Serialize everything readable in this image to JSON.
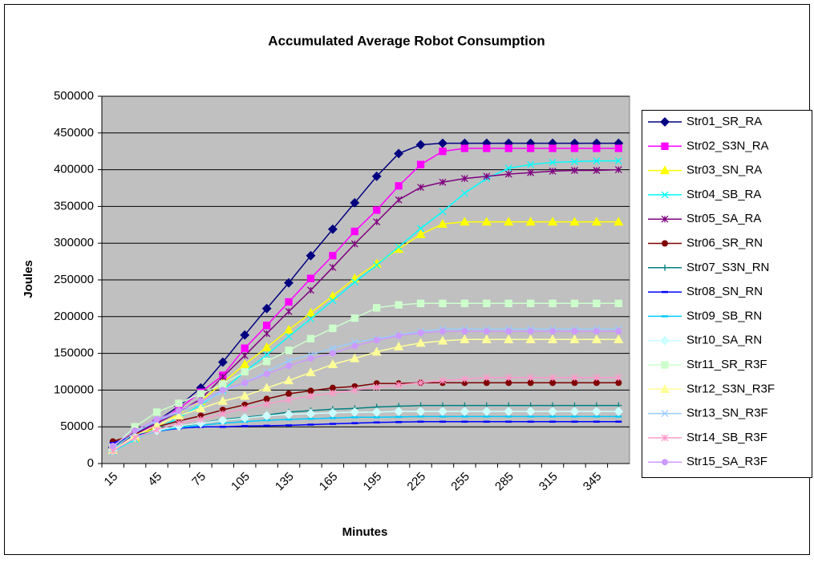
{
  "chart_data": {
    "type": "line",
    "title": "Accumulated Average Robot Consumption",
    "x_label": "Minutes",
    "y_label": "Joules",
    "categories": [
      15,
      null,
      45,
      null,
      75,
      null,
      105,
      null,
      135,
      null,
      165,
      null,
      195,
      null,
      225,
      null,
      255,
      null,
      285,
      null,
      315,
      null,
      345,
      null
    ],
    "ylim": [
      0,
      500000
    ],
    "yticks": [
      0,
      50000,
      100000,
      150000,
      200000,
      250000,
      300000,
      350000,
      400000,
      450000,
      500000
    ],
    "grid": true,
    "legend": "right",
    "plot_background": "#c0c0c0",
    "series": [
      {
        "name": "Str01_SR_RA",
        "color": "#000080",
        "marker": "diamond",
        "values": [
          22000,
          40000,
          58000,
          78000,
          103000,
          138000,
          175000,
          211000,
          246000,
          283000,
          319000,
          355000,
          391000,
          422000,
          434000,
          436000,
          436000,
          436000,
          436000,
          436000,
          436000,
          436000,
          436000,
          436000
        ]
      },
      {
        "name": "Str02_S3N_RA",
        "color": "#ff00ff",
        "marker": "square",
        "values": [
          20000,
          38000,
          55000,
          75000,
          97000,
          120000,
          157000,
          188000,
          220000,
          252000,
          283000,
          316000,
          345000,
          378000,
          407000,
          425000,
          429000,
          429000,
          429000,
          429000,
          429000,
          429000,
          429000,
          429000
        ]
      },
      {
        "name": "Str03_SN_RA",
        "color": "#ffff00",
        "marker": "triangle",
        "values": [
          18000,
          35000,
          50000,
          68000,
          85000,
          110000,
          135000,
          158000,
          182000,
          205000,
          228000,
          252000,
          272000,
          292000,
          312000,
          326000,
          329000,
          329000,
          329000,
          329000,
          329000,
          329000,
          329000,
          329000
        ]
      },
      {
        "name": "Str04_SB_RA",
        "color": "#00ffff",
        "marker": "x",
        "values": [
          16000,
          33000,
          48000,
          62000,
          80000,
          100000,
          125000,
          148000,
          173000,
          197000,
          222000,
          247000,
          270000,
          295000,
          320000,
          343000,
          368000,
          388000,
          402000,
          407000,
          410000,
          411000,
          412000,
          412000
        ]
      },
      {
        "name": "Str05_SA_RA",
        "color": "#800080",
        "marker": "star",
        "values": [
          20000,
          40000,
          55000,
          70000,
          88000,
          118000,
          147000,
          177000,
          207000,
          236000,
          267000,
          299000,
          329000,
          359000,
          376000,
          383000,
          388000,
          391000,
          394000,
          396000,
          398000,
          399000,
          399000,
          400000
        ]
      },
      {
        "name": "Str06_SR_RN",
        "color": "#800000",
        "marker": "circle",
        "values": [
          30000,
          40000,
          50000,
          58000,
          65000,
          73000,
          80000,
          88000,
          95000,
          99000,
          103000,
          105000,
          109000,
          109000,
          110000,
          110000,
          110000,
          110000,
          110000,
          110000,
          110000,
          110000,
          110000,
          110000
        ]
      },
      {
        "name": "Str07_S3N_RN",
        "color": "#008080",
        "marker": "plus",
        "values": [
          25000,
          38000,
          45000,
          50000,
          55000,
          60000,
          63000,
          66000,
          70000,
          72000,
          74000,
          75000,
          77000,
          78000,
          79000,
          79000,
          79000,
          79000,
          79000,
          79000,
          79000,
          79000,
          79000,
          79000
        ]
      },
      {
        "name": "Str08_SN_RN",
        "color": "#0000ff",
        "marker": "dash",
        "values": [
          28000,
          38000,
          44000,
          48000,
          50000,
          50000,
          51000,
          51500,
          52000,
          53000,
          54000,
          55000,
          56000,
          56500,
          57000,
          57000,
          57000,
          57000,
          57000,
          57000,
          57000,
          57000,
          57000,
          57000
        ]
      },
      {
        "name": "Str09_SB_RN",
        "color": "#00ccff",
        "marker": "dash",
        "values": [
          20000,
          36000,
          44000,
          49000,
          52000,
          55000,
          57000,
          59000,
          60000,
          61000,
          62000,
          63000,
          63000,
          63500,
          64000,
          64000,
          64000,
          64000,
          64000,
          64000,
          64000,
          64000,
          64000,
          64000
        ]
      },
      {
        "name": "Str10_SA_RN",
        "color": "#ccffff",
        "marker": "diamond",
        "values": [
          18000,
          36000,
          45000,
          51000,
          55000,
          59000,
          62000,
          65000,
          67000,
          68000,
          69000,
          70000,
          70000,
          71000,
          71000,
          71000,
          71000,
          71000,
          71000,
          71000,
          71000,
          71000,
          71000,
          71000
        ]
      },
      {
        "name": "Str11_SR_R3F",
        "color": "#ccffcc",
        "marker": "square",
        "values": [
          22000,
          50000,
          70000,
          82000,
          95000,
          108000,
          125000,
          139000,
          154000,
          170000,
          184000,
          198000,
          212000,
          216000,
          218000,
          218000,
          218000,
          218000,
          218000,
          218000,
          218000,
          218000,
          218000,
          218000
        ]
      },
      {
        "name": "Str12_S3N_R3F",
        "color": "#ffff99",
        "marker": "triangle",
        "values": [
          18000,
          38000,
          52000,
          65000,
          75000,
          85000,
          92000,
          103000,
          113000,
          124000,
          135000,
          143000,
          152000,
          159000,
          164000,
          167000,
          169000,
          169000,
          169000,
          169000,
          169000,
          169000,
          169000,
          169000
        ]
      },
      {
        "name": "Str13_SN_R3F",
        "color": "#99ccff",
        "marker": "x",
        "values": [
          20000,
          42000,
          58000,
          70000,
          82000,
          98000,
          110000,
          125000,
          140000,
          148000,
          157000,
          165000,
          170000,
          175000,
          180000,
          183000,
          183000,
          183000,
          183000,
          183000,
          183000,
          183000,
          183000,
          183000
        ]
      },
      {
        "name": "Str14_SB_R3F",
        "color": "#ff99cc",
        "marker": "star",
        "values": [
          17000,
          35000,
          46000,
          55000,
          60000,
          68000,
          75000,
          81000,
          87000,
          92000,
          96000,
          100000,
          104000,
          107000,
          110000,
          113000,
          115000,
          117000,
          117000,
          117000,
          117000,
          117000,
          117000,
          117000
        ]
      },
      {
        "name": "Str15_SA_R3F",
        "color": "#cc99ff",
        "marker": "circle",
        "values": [
          24000,
          45000,
          60000,
          72000,
          85000,
          100000,
          110000,
          122000,
          133000,
          143000,
          150000,
          160000,
          168000,
          174000,
          178000,
          180000,
          180000,
          180000,
          180000,
          180000,
          180000,
          180000,
          180000,
          180000
        ]
      }
    ]
  }
}
